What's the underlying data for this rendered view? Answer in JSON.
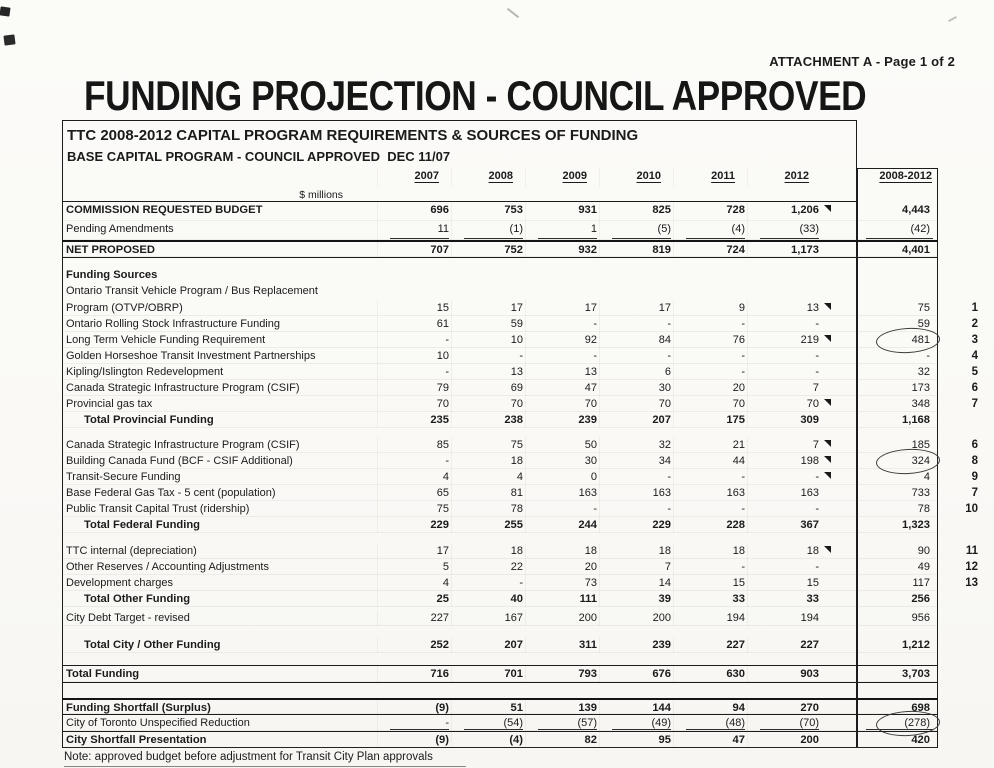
{
  "page": {
    "attachment_label": "ATTACHMENT A - Page 1 of 2",
    "title": "FUNDING PROJECTION - COUNCIL APPROVED",
    "footnote": "Note: approved budget before adjustment for Transit City Plan approvals"
  },
  "table": {
    "heading1": "TTC 2008-2012 CAPITAL PROGRAM REQUIREMENTS & SOURCES OF FUNDING",
    "heading2": "BASE CAPITAL PROGRAM - COUNCIL APPROVED  DEC 11/07",
    "units_label": "$ millions",
    "year_columns": [
      "2007",
      "2008",
      "2009",
      "2010",
      "2011",
      "2012"
    ],
    "total_column": "2008-2012",
    "rows": [
      {
        "id": "commission",
        "label": "COMMISSION REQUESTED BUDGET",
        "values": [
          "696",
          "753",
          "931",
          "825",
          "728",
          "1,206"
        ],
        "total": "4,443",
        "flag": true
      },
      {
        "id": "pending",
        "label": "Pending Amendments",
        "values": [
          "11",
          "(1)",
          "1",
          "(5)",
          "(4)",
          "(33)"
        ],
        "total": "(42)"
      },
      {
        "id": "net",
        "label": "NET PROPOSED",
        "values": [
          "707",
          "752",
          "932",
          "819",
          "724",
          "1,173"
        ],
        "total": "4,401"
      },
      {
        "id": "spacer1",
        "kind": "spacer"
      },
      {
        "id": "funding_sources",
        "label": "Funding Sources"
      },
      {
        "id": "otvp_line1",
        "label": "Ontario Transit Vehicle Program / Bus Replacement"
      },
      {
        "id": "program",
        "label": "Program (OTVP/OBRP)",
        "values": [
          "15",
          "17",
          "17",
          "17",
          "9",
          "13"
        ],
        "total": "75",
        "note": "1",
        "flag": true
      },
      {
        "id": "rolling",
        "label": "Ontario Rolling Stock Infrastructure Funding",
        "values": [
          "61",
          "59",
          "-",
          "-",
          "-",
          "-"
        ],
        "total": "59",
        "note": "2"
      },
      {
        "id": "long_term",
        "label": "Long Term Vehicle Funding Requirement",
        "values": [
          "-",
          "10",
          "92",
          "84",
          "76",
          "219"
        ],
        "total": "481",
        "note": "3",
        "flag": true,
        "circle": true
      },
      {
        "id": "golden",
        "label": "Golden Horseshoe Transit Investment Partnerships",
        "values": [
          "10",
          "-",
          "-",
          "-",
          "-",
          "-"
        ],
        "total": "-",
        "note": "4"
      },
      {
        "id": "kipling",
        "label": "Kipling/Islington Redevelopment",
        "values": [
          "-",
          "13",
          "13",
          "6",
          "-",
          "-"
        ],
        "total": "32",
        "note": "5"
      },
      {
        "id": "csif_prov",
        "label": "Canada Strategic Infrastructure Program (CSIF)",
        "values": [
          "79",
          "69",
          "47",
          "30",
          "20",
          "7"
        ],
        "total": "173",
        "note": "6"
      },
      {
        "id": "gas_tax",
        "label": "Provincial gas tax",
        "values": [
          "70",
          "70",
          "70",
          "70",
          "70",
          "70"
        ],
        "total": "348",
        "note": "7",
        "flag": true
      },
      {
        "id": "total_prov",
        "label": "Total Provincial Funding",
        "values": [
          "235",
          "238",
          "239",
          "207",
          "175",
          "309"
        ],
        "total": "1,168"
      },
      {
        "id": "spacer2",
        "kind": "spacer"
      },
      {
        "id": "csif_fed",
        "label": "Canada Strategic Infrastructure Program (CSIF)",
        "values": [
          "85",
          "75",
          "50",
          "32",
          "21",
          "7"
        ],
        "total": "185",
        "note": "6",
        "flag": true
      },
      {
        "id": "bcf",
        "label": "Building Canada Fund (BCF - CSIF Additional)",
        "values": [
          "-",
          "18",
          "30",
          "34",
          "44",
          "198"
        ],
        "total": "324",
        "note": "8",
        "flag": true,
        "circle": true
      },
      {
        "id": "transit_secure",
        "label": "Transit-Secure Funding",
        "values": [
          "4",
          "4",
          "0",
          "-",
          "-",
          "-"
        ],
        "total": "4",
        "note": "9",
        "flag": true
      },
      {
        "id": "base_gas",
        "label": "Base Federal Gas Tax - 5 cent (population)",
        "values": [
          "65",
          "81",
          "163",
          "163",
          "163",
          "163"
        ],
        "total": "733",
        "note": "7"
      },
      {
        "id": "ptct",
        "label": "Public Transit Capital Trust (ridership)",
        "values": [
          "75",
          "78",
          "-",
          "-",
          "-",
          "-"
        ],
        "total": "78",
        "note": "10"
      },
      {
        "id": "total_fed",
        "label": "Total Federal Funding",
        "values": [
          "229",
          "255",
          "244",
          "229",
          "228",
          "367"
        ],
        "total": "1,323"
      },
      {
        "id": "spacer3",
        "kind": "spacer"
      },
      {
        "id": "ttc_internal",
        "label": "TTC internal (depreciation)",
        "values": [
          "17",
          "18",
          "18",
          "18",
          "18",
          "18"
        ],
        "total": "90",
        "note": "11",
        "flag": true
      },
      {
        "id": "other_reserves",
        "label": "Other Reserves / Accounting Adjustments",
        "values": [
          "5",
          "22",
          "20",
          "7",
          "-",
          "-"
        ],
        "total": "49",
        "note": "12"
      },
      {
        "id": "dev_charges",
        "label": "Development charges",
        "values": [
          "4",
          "-",
          "73",
          "14",
          "15",
          "15"
        ],
        "total": "117",
        "note": "13"
      },
      {
        "id": "total_other",
        "label": "Total Other Funding",
        "values": [
          "25",
          "40",
          "111",
          "39",
          "33",
          "33"
        ],
        "total": "256"
      },
      {
        "id": "spacer4",
        "kind": "spacer"
      },
      {
        "id": "city_debt",
        "label": "City Debt Target - revised",
        "values": [
          "227",
          "167",
          "200",
          "200",
          "194",
          "194"
        ],
        "total": "956"
      },
      {
        "id": "spacer5",
        "kind": "spacer"
      },
      {
        "id": "total_city",
        "label": "Total City / Other Funding",
        "values": [
          "252",
          "207",
          "311",
          "239",
          "227",
          "227"
        ],
        "total": "1,212"
      },
      {
        "id": "spacer6",
        "kind": "spacer"
      },
      {
        "id": "total_funding",
        "label": "Total Funding",
        "values": [
          "716",
          "701",
          "793",
          "676",
          "630",
          "903"
        ],
        "total": "3,703"
      },
      {
        "id": "spacer7",
        "kind": "spacer"
      },
      {
        "id": "shortfall",
        "label": "Funding Shortfall (Surplus)",
        "values": [
          "(9)",
          "51",
          "139",
          "144",
          "94",
          "270"
        ],
        "total": "698"
      },
      {
        "id": "reduction",
        "label": "City of Toronto Unspecified Reduction",
        "values": [
          "-",
          "(54)",
          "(57)",
          "(49)",
          "(48)",
          "(70)"
        ],
        "total": "(278)",
        "circle": true
      },
      {
        "id": "presentation",
        "label": "City Shortfall Presentation",
        "values": [
          "(9)",
          "(4)",
          "82",
          "95",
          "47",
          "200"
        ],
        "total": "420"
      }
    ]
  }
}
